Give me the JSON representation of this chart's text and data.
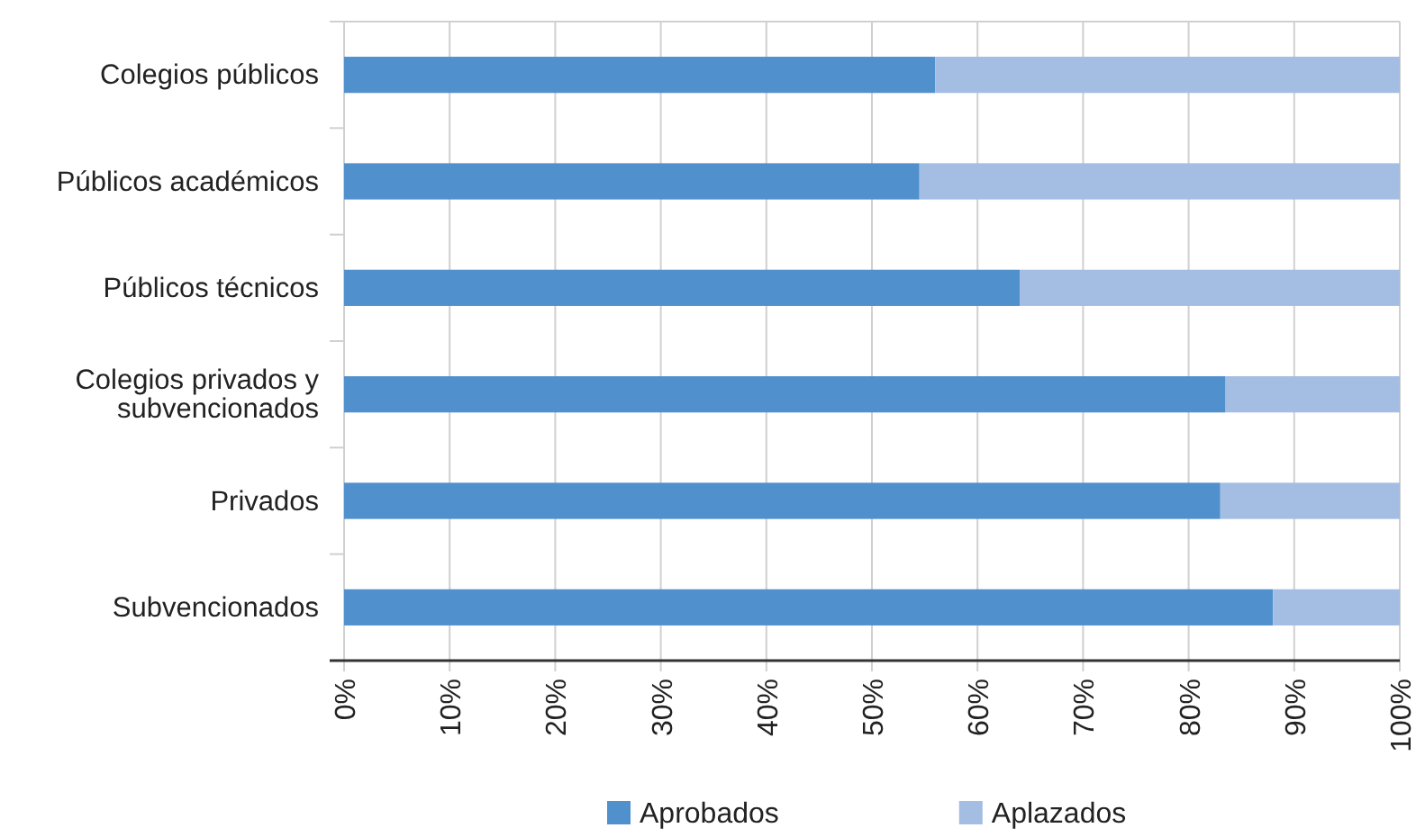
{
  "chart_data": {
    "type": "bar",
    "orientation": "horizontal",
    "stacked": true,
    "categories": [
      "Colegios públicos",
      "Públicos académicos",
      "Públicos técnicos",
      "Colegios privados y subvencionados",
      "Privados",
      "Subvencionados"
    ],
    "series": [
      {
        "name": "Aprobados",
        "color": "#5090cd",
        "values": [
          56,
          54.5,
          64,
          83.5,
          83,
          88
        ]
      },
      {
        "name": "Aplazados",
        "color": "#a3bde3",
        "values": [
          44,
          45.5,
          36,
          16.5,
          17,
          12
        ]
      }
    ],
    "xlim": [
      0,
      100
    ],
    "xticks": [
      {
        "value": 0,
        "label": "0%"
      },
      {
        "value": 10,
        "label": "10%"
      },
      {
        "value": 20,
        "label": "20%"
      },
      {
        "value": 30,
        "label": "30%"
      },
      {
        "value": 40,
        "label": "40%"
      },
      {
        "value": 50,
        "label": "50%"
      },
      {
        "value": 60,
        "label": "60%"
      },
      {
        "value": 70,
        "label": "70%"
      },
      {
        "value": 80,
        "label": "80%"
      },
      {
        "value": 90,
        "label": "90%"
      },
      {
        "value": 100,
        "label": "100%"
      }
    ],
    "grid": "x",
    "legend": "bottom"
  }
}
